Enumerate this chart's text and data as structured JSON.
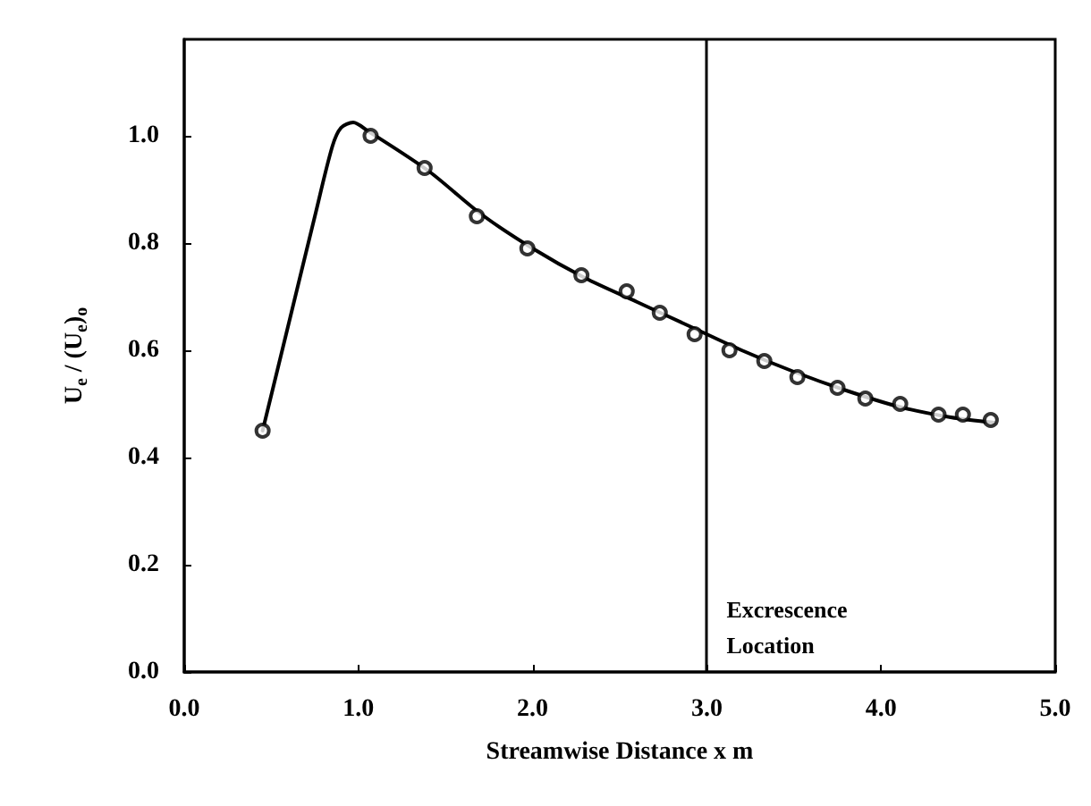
{
  "chart_data": {
    "type": "scatter",
    "xlabel": "Streamwise Distance x m",
    "ylabel": "U$_{e}$ / (U$_{e}$)$_{o}$",
    "xlim": [
      0,
      5
    ],
    "ylim": [
      0,
      1.18
    ],
    "xticks": [
      {
        "value": 0,
        "label": "0.0"
      },
      {
        "value": 1,
        "label": "1.0"
      },
      {
        "value": 2,
        "label": "2.0"
      },
      {
        "value": 3,
        "label": "3.0"
      },
      {
        "value": 4,
        "label": "4.0"
      },
      {
        "value": 5,
        "label": "5.0"
      }
    ],
    "yticks": [
      {
        "value": 0,
        "label": "0.0"
      },
      {
        "value": 0.2,
        "label": "0.2"
      },
      {
        "value": 0.4,
        "label": "0.4"
      },
      {
        "value": 0.6,
        "label": "0.6"
      },
      {
        "value": 0.8,
        "label": "0.8"
      },
      {
        "value": 1,
        "label": "1.0"
      }
    ],
    "grid": false,
    "series": [
      {
        "color": "#000000",
        "marker": "circle",
        "x": [
          0.45,
          1.07,
          1.38,
          1.68,
          1.97,
          2.28,
          2.54,
          2.73,
          2.93,
          3.13,
          3.33,
          3.52,
          3.75,
          3.91,
          4.11,
          4.33,
          4.47,
          4.63
        ],
        "values": [
          0.45,
          1.0,
          0.94,
          0.85,
          0.79,
          0.74,
          0.71,
          0.67,
          0.63,
          0.6,
          0.58,
          0.55,
          0.53,
          0.51,
          0.5,
          0.48,
          0.48,
          0.47
        ]
      },
      {
        "type": "line",
        "color": "#000000",
        "marker": "none",
        "line_style": "solid",
        "x": [
          0.45,
          0.6,
          0.75,
          0.85,
          0.9,
          0.97,
          1.05,
          1.4,
          1.7,
          2.0,
          2.3,
          2.6,
          2.9,
          3.2,
          3.5,
          3.8,
          4.1,
          4.4,
          4.65
        ],
        "values": [
          0.45,
          0.65,
          0.85,
          0.98,
          1.015,
          1.025,
          1.01,
          0.935,
          0.855,
          0.79,
          0.735,
          0.69,
          0.645,
          0.6,
          0.56,
          0.525,
          0.495,
          0.475,
          0.465
        ]
      }
    ],
    "ref_lines": [
      {
        "axis": "x",
        "value": 3,
        "label": "Excrescence\nLocation",
        "color": "#000000",
        "line_style": "solid"
      }
    ]
  }
}
